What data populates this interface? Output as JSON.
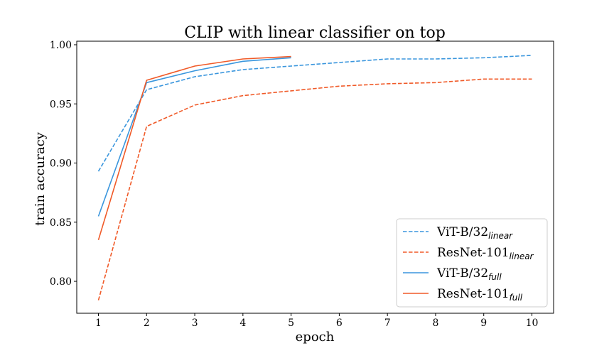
{
  "chart_data": {
    "type": "line",
    "title": "CLIP with linear classifier on top",
    "xlabel": "epoch",
    "ylabel": "train accuracy",
    "xlim": [
      0.55,
      10.45
    ],
    "ylim": [
      0.773,
      1.003
    ],
    "xticks": [
      1,
      2,
      3,
      4,
      5,
      6,
      7,
      8,
      9,
      10
    ],
    "yticks": [
      0.8,
      0.85,
      0.9,
      0.95,
      1.0
    ],
    "ytick_labels": [
      "0.80",
      "0.85",
      "0.90",
      "0.95",
      "1.00"
    ],
    "grid": false,
    "legend_position": "bottom-right",
    "series": [
      {
        "name": "ViT-B/32",
        "name_sub": "linear",
        "color": "#3a96dd",
        "style": "dashed",
        "x": [
          1,
          2,
          3,
          4,
          5,
          6,
          7,
          8,
          9,
          10
        ],
        "y": [
          0.893,
          0.962,
          0.973,
          0.979,
          0.982,
          0.985,
          0.988,
          0.988,
          0.989,
          0.991
        ]
      },
      {
        "name": "ResNet-101",
        "name_sub": "linear",
        "color": "#f05a28",
        "style": "dashed",
        "x": [
          1,
          2,
          3,
          4,
          5,
          6,
          7,
          8,
          9,
          10
        ],
        "y": [
          0.784,
          0.931,
          0.949,
          0.957,
          0.961,
          0.965,
          0.967,
          0.968,
          0.971,
          0.971
        ]
      },
      {
        "name": "ViT-B/32",
        "name_sub": "full",
        "color": "#3a96dd",
        "style": "solid",
        "x": [
          1,
          2,
          3,
          4,
          5
        ],
        "y": [
          0.855,
          0.968,
          0.978,
          0.986,
          0.989
        ]
      },
      {
        "name": "ResNet-101",
        "name_sub": "full",
        "color": "#f05a28",
        "style": "solid",
        "x": [
          1,
          2,
          3,
          4,
          5
        ],
        "y": [
          0.835,
          0.97,
          0.982,
          0.988,
          0.99
        ]
      }
    ]
  }
}
